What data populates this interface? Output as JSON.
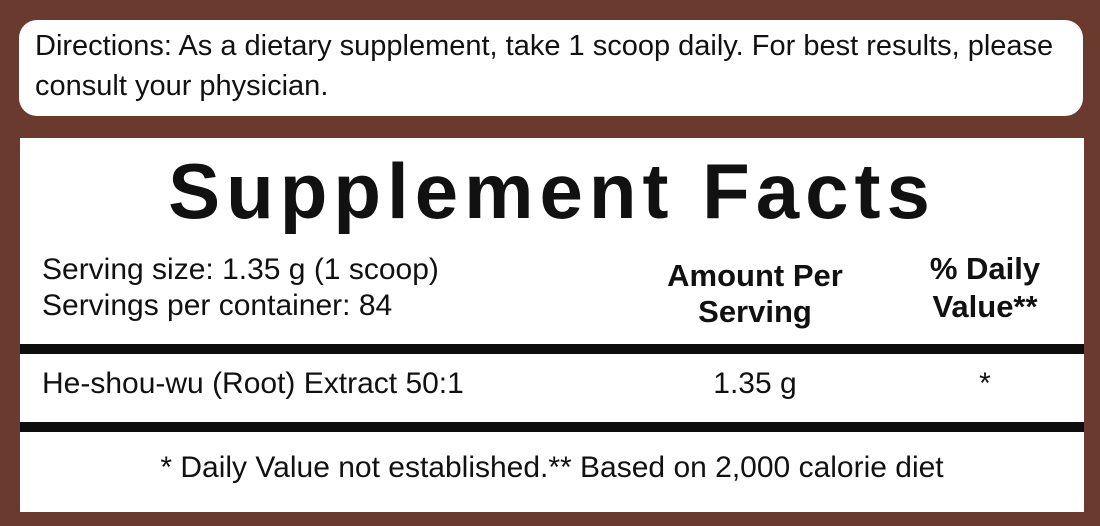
{
  "directions": {
    "text": "Directions: As a dietary supplement, take 1 scoop daily.  For best results, please consult your physician."
  },
  "facts": {
    "title": "Supplement Facts",
    "serving_size": "Serving size: 1.35 g (1 scoop)",
    "servings_per_container": "Servings per container:  84",
    "header_amount_line1": "Amount Per",
    "header_amount_line2": "Serving",
    "header_dv_line1": "% Daily",
    "header_dv_line2": "Value**",
    "rows": [
      {
        "name": "He-shou-wu (Root) Extract 50:1",
        "amount": "1.35 g",
        "dv": "*"
      }
    ],
    "footnote": "* Daily Value not established.** Based on 2,000 calorie diet"
  },
  "colors": {
    "background": "#6b3a2f",
    "panel": "#ffffff",
    "rule": "#0d0d0d"
  }
}
